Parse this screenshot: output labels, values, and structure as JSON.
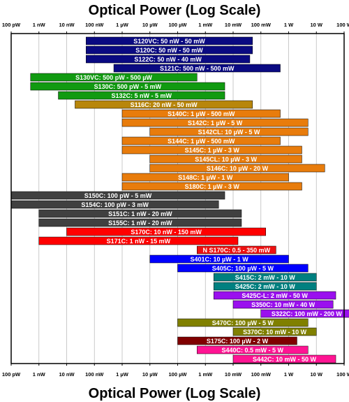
{
  "chart_data": {
    "type": "bar",
    "orientation": "horizontal",
    "title": "Optical Power (Log Scale)",
    "x_scale": "log",
    "x_unit": "W",
    "xlim": [
      1e-10,
      100
    ],
    "grid": true,
    "x_ticks": [
      {
        "value": 1e-10,
        "label": "100 pW"
      },
      {
        "value": 1e-09,
        "label": "1 nW"
      },
      {
        "value": 1e-08,
        "label": "10 nW"
      },
      {
        "value": 1e-07,
        "label": "100 nW"
      },
      {
        "value": 1e-06,
        "label": "1 µW"
      },
      {
        "value": 1e-05,
        "label": "10 µW"
      },
      {
        "value": 0.0001,
        "label": "100 µW"
      },
      {
        "value": 0.001,
        "label": "1 mW"
      },
      {
        "value": 0.01,
        "label": "10 mW"
      },
      {
        "value": 0.1,
        "label": "100 mW"
      },
      {
        "value": 1,
        "label": "1 W"
      },
      {
        "value": 10,
        "label": "10 W"
      },
      {
        "value": 100,
        "label": "100 W"
      }
    ],
    "series": [
      {
        "label": "S120VC: 50 nW - 50 mW",
        "min": 5e-08,
        "max": 0.05,
        "color": "#0a0a82"
      },
      {
        "label": "S120C: 50 nW - 50 mW",
        "min": 5e-08,
        "max": 0.05,
        "color": "#0a0a82"
      },
      {
        "label": "S122C: 50 nW - 40 mW",
        "min": 5e-08,
        "max": 0.04,
        "color": "#0a0a82"
      },
      {
        "label": "S121C: 500 nW - 500 mW",
        "min": 5e-07,
        "max": 0.5,
        "color": "#0a0a82"
      },
      {
        "label": "S130VC: 500 pW - 500 µW",
        "min": 5e-10,
        "max": 0.0005,
        "color": "#119a11"
      },
      {
        "label": "S130C: 500 pW - 5 mW",
        "min": 5e-10,
        "max": 0.005,
        "color": "#119a11"
      },
      {
        "label": "S132C: 5 nW - 5 mW",
        "min": 5e-09,
        "max": 0.005,
        "color": "#119a11"
      },
      {
        "label": "S116C: 20 nW - 50 mW",
        "min": 2e-08,
        "max": 0.05,
        "color": "#b8860b"
      },
      {
        "label": "S140C: 1 µW - 500 mW",
        "min": 1e-06,
        "max": 0.5,
        "color": "#e87c0c"
      },
      {
        "label": "S142C: 1 µW - 5 W",
        "min": 1e-06,
        "max": 5,
        "color": "#e87c0c"
      },
      {
        "label": "S142CL: 10 µW - 5 W",
        "min": 1e-05,
        "max": 5,
        "color": "#e87c0c"
      },
      {
        "label": "S144C: 1 µW - 500 mW",
        "min": 1e-06,
        "max": 0.5,
        "color": "#e87c0c"
      },
      {
        "label": "S145C: 1 µW - 3 W",
        "min": 1e-06,
        "max": 3,
        "color": "#e87c0c"
      },
      {
        "label": "S145CL: 10 µW - 3 W",
        "min": 1e-05,
        "max": 3,
        "color": "#e87c0c"
      },
      {
        "label": "S146C: 10 µW - 20 W",
        "min": 1e-05,
        "max": 20,
        "color": "#e87c0c"
      },
      {
        "label": "S148C: 1 µW - 1 W",
        "min": 1e-06,
        "max": 1,
        "color": "#e87c0c"
      },
      {
        "label": "S180C: 1 µW - 3 W",
        "min": 1e-06,
        "max": 3,
        "color": "#e87c0c"
      },
      {
        "label": "S150C: 100 pW - 5 mW",
        "min": 1e-10,
        "max": 0.005,
        "color": "#404040"
      },
      {
        "label": "S154C: 100 pW - 3 mW",
        "min": 1e-10,
        "max": 0.003,
        "color": "#404040"
      },
      {
        "label": "S151C: 1 nW - 20 mW",
        "min": 1e-09,
        "max": 0.02,
        "color": "#404040"
      },
      {
        "label": "S155C: 1 nW - 20 mW",
        "min": 1e-09,
        "max": 0.02,
        "color": "#404040"
      },
      {
        "label": "S170C: 10 nW - 150 mW",
        "min": 1e-08,
        "max": 0.15,
        "color": "#ff0000"
      },
      {
        "label": "S171C: 1 nW - 15 mW",
        "min": 1e-09,
        "max": 0.015,
        "color": "#ff0000"
      },
      {
        "label": "N S170C: 0.5 - 350 mW",
        "min": 0.0005,
        "max": 0.35,
        "color": "#ee1111"
      },
      {
        "label": "S401C: 10 µW - 1 W",
        "min": 1e-05,
        "max": 1,
        "color": "#0000ff"
      },
      {
        "label": "S405C: 100 µW - 5 W",
        "min": 0.0001,
        "max": 5,
        "color": "#0000ff"
      },
      {
        "label": "S415C: 2 mW - 10 W",
        "min": 0.002,
        "max": 10,
        "color": "#008080"
      },
      {
        "label": "S425C: 2 mW - 10 W",
        "min": 0.002,
        "max": 10,
        "color": "#008080"
      },
      {
        "label": "S425C-L: 2 mW - 50 W",
        "min": 0.002,
        "max": 50,
        "color": "#9a10ee"
      },
      {
        "label": "S350C: 10 mW - 40 W",
        "min": 0.01,
        "max": 40,
        "color": "#9a10ee"
      },
      {
        "label": "S322C: 100 mW - 200 W",
        "min": 0.1,
        "max": 200,
        "color": "#9a10ee"
      },
      {
        "label": "S470C: 100 µW - 5 W",
        "min": 0.0001,
        "max": 5,
        "color": "#808000"
      },
      {
        "label": "S370C: 10 mW - 10 W",
        "min": 0.01,
        "max": 10,
        "color": "#808000"
      },
      {
        "label": "S175C: 100 µW - 2 W",
        "min": 0.0001,
        "max": 2,
        "color": "#800000"
      },
      {
        "label": "S440C: 0.5 mW - 5 W",
        "min": 0.0005,
        "max": 5,
        "color": "#ff1493"
      },
      {
        "label": "S442C: 10 mW - 50 W",
        "min": 0.01,
        "max": 50,
        "color": "#ff1493"
      }
    ]
  }
}
